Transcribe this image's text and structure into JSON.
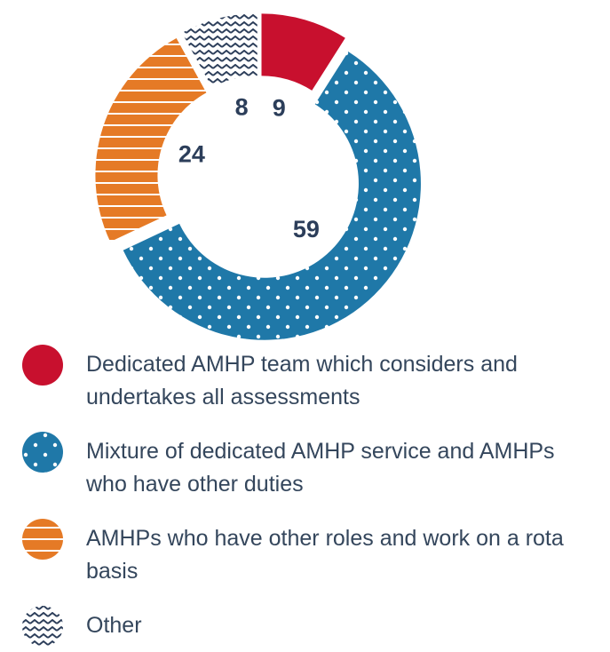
{
  "chart_data": {
    "type": "pie",
    "donut": true,
    "categories": [
      "Dedicated AMHP team which considers and undertakes all assessments",
      "Mixture of dedicated AMHP service and AMHPs who have other duties",
      "AMHPs who have other roles and work on a rota basis",
      "Other"
    ],
    "values": [
      9,
      59,
      24,
      8
    ],
    "colors": [
      "#c8102e",
      "#1f78a8",
      "#e57a26",
      "#2c3e5a"
    ],
    "patterns": [
      "solid",
      "dots",
      "stripes",
      "zigzag"
    ]
  }
}
